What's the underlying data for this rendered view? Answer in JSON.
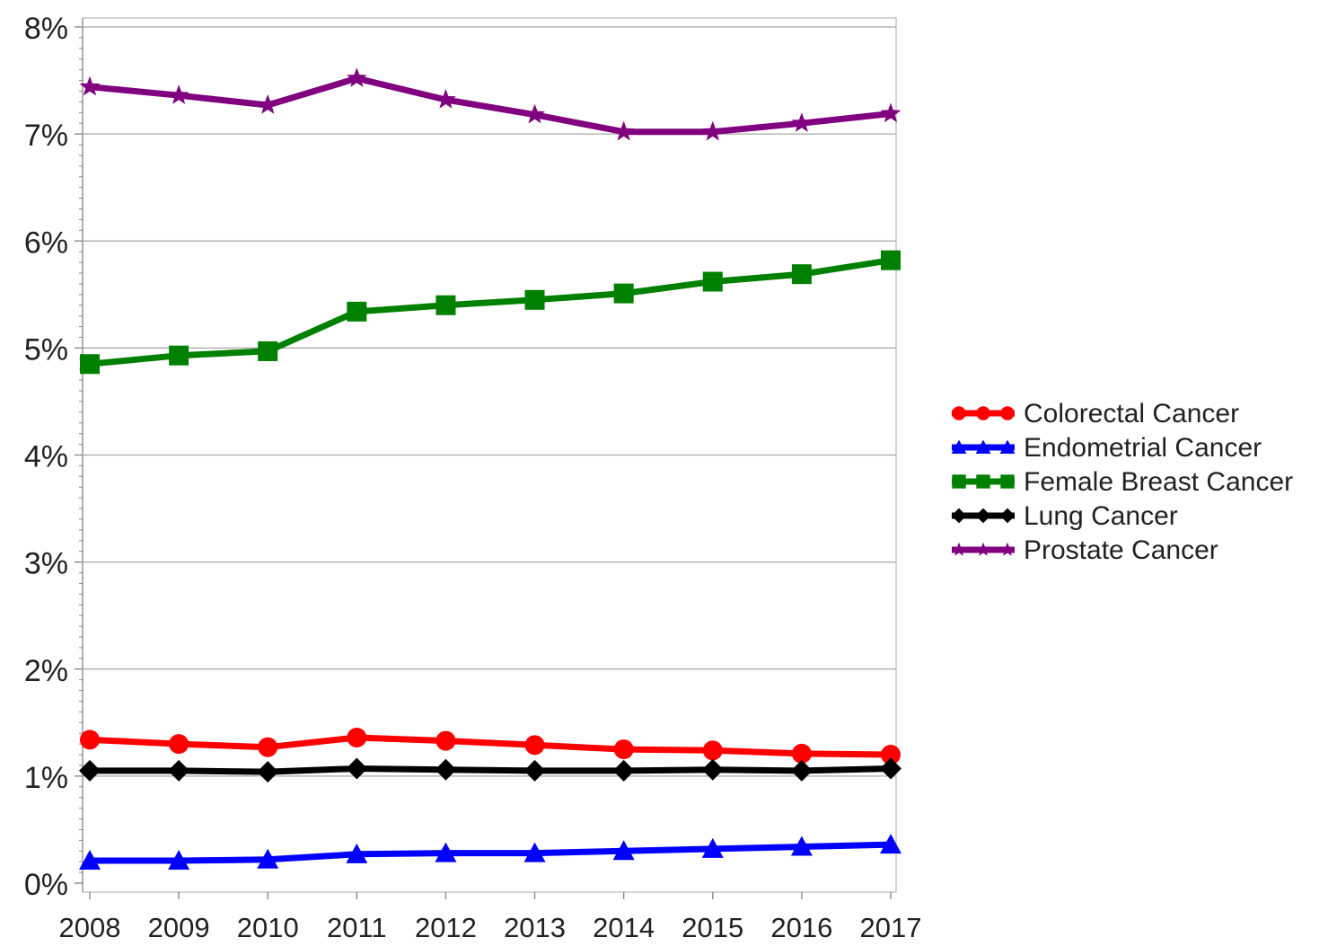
{
  "chart_data": {
    "type": "line",
    "title": "",
    "xlabel": "",
    "ylabel": "",
    "x": [
      2008,
      2009,
      2010,
      2011,
      2012,
      2013,
      2014,
      2015,
      2016,
      2017
    ],
    "x_tick_labels": [
      "2008",
      "2009",
      "2010",
      "2011",
      "2012",
      "2013",
      "2014",
      "2015",
      "2016",
      "2017"
    ],
    "y_tick_labels": [
      "0%",
      "1%",
      "2%",
      "3%",
      "4%",
      "5%",
      "6%",
      "7%",
      "8%"
    ],
    "ylim": [
      0,
      8
    ],
    "y_unit": "%",
    "grid": "horizontal",
    "legend_position": "right",
    "series": [
      {
        "name": "Colorectal Cancer",
        "color": "#ff0000",
        "marker": "circle",
        "values": [
          1.34,
          1.3,
          1.27,
          1.36,
          1.33,
          1.29,
          1.25,
          1.24,
          1.21,
          1.2
        ]
      },
      {
        "name": "Endometrial Cancer",
        "color": "#0000ff",
        "marker": "triangle",
        "values": [
          0.21,
          0.21,
          0.22,
          0.27,
          0.28,
          0.28,
          0.3,
          0.32,
          0.34,
          0.36
        ]
      },
      {
        "name": "Female Breast Cancer",
        "color": "#008000",
        "marker": "square",
        "values": [
          4.85,
          4.93,
          4.97,
          5.34,
          5.4,
          5.45,
          5.51,
          5.62,
          5.69,
          5.82
        ]
      },
      {
        "name": "Lung Cancer",
        "color": "#000000",
        "marker": "diamond",
        "values": [
          1.05,
          1.05,
          1.04,
          1.07,
          1.06,
          1.05,
          1.05,
          1.06,
          1.05,
          1.07
        ]
      },
      {
        "name": "Prostate Cancer",
        "color": "#800080",
        "marker": "star",
        "values": [
          7.44,
          7.36,
          7.27,
          7.52,
          7.32,
          7.18,
          7.02,
          7.02,
          7.1,
          7.19
        ]
      }
    ]
  }
}
